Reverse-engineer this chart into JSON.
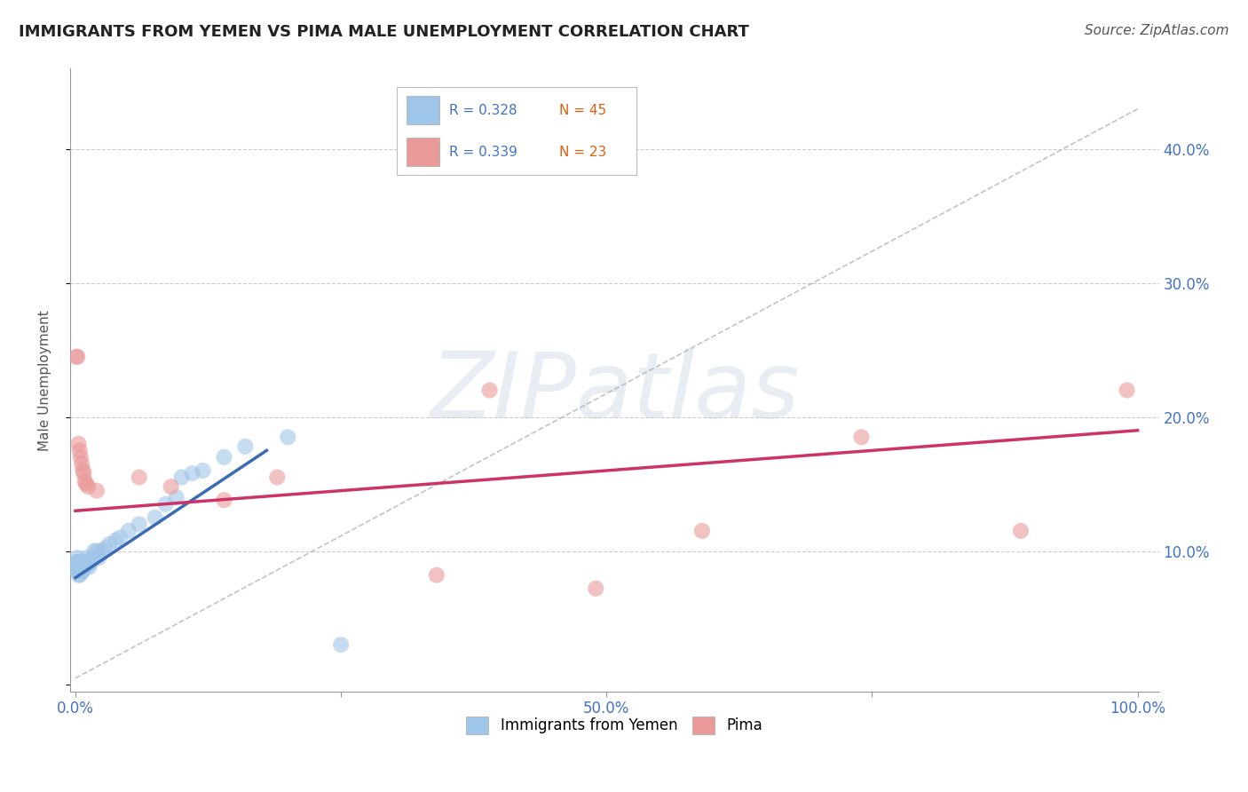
{
  "title": "IMMIGRANTS FROM YEMEN VS PIMA MALE UNEMPLOYMENT CORRELATION CHART",
  "source": "Source: ZipAtlas.com",
  "ylabel": "Male Unemployment",
  "xlim": [
    -0.005,
    1.02
  ],
  "ylim": [
    -0.005,
    0.46
  ],
  "yticks": [
    0.0,
    0.1,
    0.2,
    0.3,
    0.4
  ],
  "ytick_labels": [
    "",
    "10.0%",
    "20.0%",
    "30.0%",
    "40.0%"
  ],
  "xticks": [
    0.0,
    0.25,
    0.5,
    0.75,
    1.0
  ],
  "xtick_labels": [
    "0.0%",
    "",
    "50.0%",
    "",
    "100.0%"
  ],
  "legend_r1": "R = 0.328",
  "legend_n1": "N = 45",
  "legend_r2": "R = 0.339",
  "legend_n2": "N = 23",
  "blue_color": "#9fc5e8",
  "pink_color": "#ea9999",
  "blue_trend_color": "#3c6bb5",
  "pink_trend_color": "#cc3366",
  "dashed_color": "#aaaaaa",
  "watermark_color": "#d0dce8",
  "blue_x": [
    0.001,
    0.001,
    0.002,
    0.002,
    0.002,
    0.003,
    0.003,
    0.003,
    0.004,
    0.004,
    0.004,
    0.005,
    0.005,
    0.006,
    0.006,
    0.007,
    0.007,
    0.008,
    0.009,
    0.01,
    0.011,
    0.012,
    0.013,
    0.015,
    0.016,
    0.018,
    0.02,
    0.022,
    0.025,
    0.028,
    0.032,
    0.038,
    0.042,
    0.05,
    0.06,
    0.075,
    0.085,
    0.095,
    0.1,
    0.11,
    0.12,
    0.14,
    0.16,
    0.2,
    0.25
  ],
  "blue_y": [
    0.092,
    0.088,
    0.095,
    0.09,
    0.085,
    0.092,
    0.088,
    0.082,
    0.092,
    0.088,
    0.082,
    0.09,
    0.085,
    0.092,
    0.085,
    0.09,
    0.085,
    0.09,
    0.088,
    0.092,
    0.095,
    0.09,
    0.088,
    0.092,
    0.095,
    0.1,
    0.1,
    0.095,
    0.1,
    0.102,
    0.105,
    0.108,
    0.11,
    0.115,
    0.12,
    0.125,
    0.135,
    0.14,
    0.155,
    0.158,
    0.16,
    0.17,
    0.178,
    0.185,
    0.03
  ],
  "pink_x": [
    0.001,
    0.002,
    0.003,
    0.004,
    0.005,
    0.006,
    0.007,
    0.008,
    0.009,
    0.01,
    0.012,
    0.02,
    0.06,
    0.09,
    0.14,
    0.19,
    0.34,
    0.39,
    0.49,
    0.59,
    0.74,
    0.89,
    0.99
  ],
  "pink_y": [
    0.245,
    0.245,
    0.18,
    0.175,
    0.17,
    0.165,
    0.16,
    0.158,
    0.152,
    0.15,
    0.148,
    0.145,
    0.155,
    0.148,
    0.138,
    0.155,
    0.082,
    0.22,
    0.072,
    0.115,
    0.185,
    0.115,
    0.22
  ],
  "blue_trend": [
    0.0,
    0.08,
    0.18,
    0.175
  ],
  "pink_trend": [
    0.0,
    0.13,
    1.0,
    0.19
  ],
  "dashed_line": [
    0.0,
    0.005,
    1.0,
    0.43
  ]
}
